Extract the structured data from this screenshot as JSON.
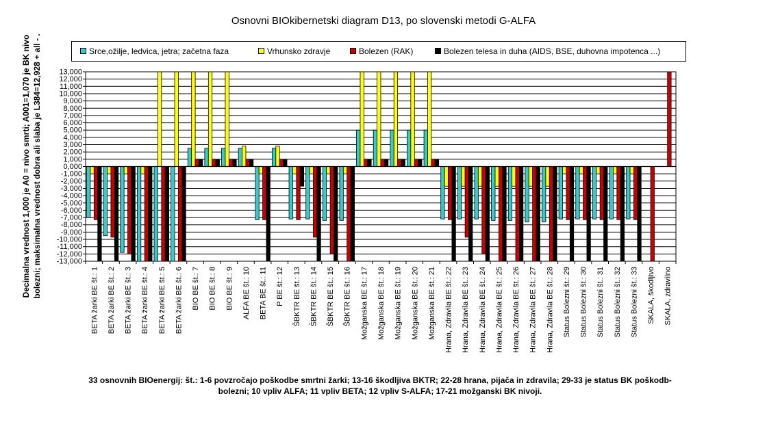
{
  "chart_data": {
    "type": "bar",
    "title": "Osnovni BIOkibernetski diagram D13, po slovenski metodi G-ALFA",
    "ylabel": "Decimalna vrednost 1,000 je A0 = nivo smrti; A001=1,070 je BK nivo bolezni; maksimalna vrednost dobra ali slaba je L384=12,928 + all -",
    "ylim": [
      -13,
      13
    ],
    "yticks": [
      "-13,000",
      "-12,000",
      "-11,000",
      "-10,000",
      "-9,000",
      "-8,000",
      "-7,000",
      "-6,000",
      "-5,000",
      "-4,000",
      "-3,000",
      "-2,000",
      "-1,000",
      "0,000",
      "1,000",
      "2,000",
      "3,000",
      "4,000",
      "5,000",
      "6,000",
      "7,000",
      "8,000",
      "9,000",
      "10,000",
      "11,000",
      "12,000",
      "13,000"
    ],
    "grid": true,
    "legend_position": "top",
    "categories": [
      "BETA žarki BE št.: 1",
      "BETA žarki BE št.: 2",
      "BETA žarki BE št.: 3",
      "BETA žarki BE št.: 4",
      "BETA žarki BE št.: 5",
      "BETA žarki BE št.: 6",
      "BIO  BE št.: 7",
      "BIO  BE št.: 8",
      "BIO  BE št.: 9",
      "ALFA  BE št.: 10",
      "BETA BE št.: 11",
      "P  BE št.: 12",
      "ŠBKTR BE št.: 13",
      "ŠBKTR BE št.: 14",
      "ŠBKTR BE št.: 15",
      "ŠBKTR BE št.: 16",
      "Možganska  BE št.: 17",
      "Možganska  BE št.: 18",
      "Možganska  BE št.: 19",
      "Možganska  BE št.: 20",
      "Možganska  BE št.: 21",
      "Hrana, Zdravila BE št.: 22",
      "Hrana, Zdravila BE št.: 23",
      "Hrana, Zdravila BE št.: 24",
      "Hrana, Zdravila BE št.: 25",
      "Hrana, Zdravila BE št.: 26",
      "Hrana, Zdravila BE št.: 27",
      "Hrana, Zdravila BE št.: 28",
      "Status Bolezni št.: 29",
      "Status Bolezni št.: 30",
      "Status Bolezni št.: 31",
      "Status Bolezni št.: 32",
      "Status Bolezni št.: 33",
      "SKALA, škodljivo",
      "SKALA, zdravilno"
    ],
    "series": [
      {
        "name": "Srce,ožilje, ledvica, jetra; začetna faza",
        "color": "#33CCCC",
        "values": [
          -7,
          -9.5,
          -11.8,
          -13,
          -13,
          -13,
          2.5,
          2.5,
          2.5,
          2.5,
          -7.3,
          2.5,
          -7.2,
          -7.2,
          -7.4,
          -7.4,
          5,
          5,
          5,
          5,
          5,
          -7.2,
          -7.2,
          -7.2,
          -7.4,
          -7.4,
          -7.6,
          -7.6,
          -7.2,
          -7.2,
          -7.2,
          -7.2,
          -7.2,
          0,
          0
        ]
      },
      {
        "name": "Vrhunsko zdravje",
        "color": "#FFFF00",
        "values": [
          -1,
          -1,
          -1,
          -1,
          13,
          13,
          13,
          13,
          13,
          2.8,
          -1,
          2.8,
          -1,
          -1,
          -1,
          -1,
          13,
          13,
          13,
          13,
          13,
          -2.7,
          -2.7,
          -2.7,
          -2.7,
          -2.7,
          -2.7,
          -2.7,
          -1,
          -1,
          -1,
          -1,
          -1,
          0,
          0
        ]
      },
      {
        "name": "Bolezen (RAK)",
        "color": "#CC0000",
        "values": [
          -7.3,
          -9.7,
          -12,
          -13,
          -13,
          -13,
          1,
          1,
          1,
          1,
          -7.3,
          1,
          -7.3,
          -9.7,
          -12,
          -13,
          1,
          1,
          1,
          1,
          1,
          -7.3,
          -9.7,
          -12,
          -13,
          -13,
          -13,
          -13,
          -7.3,
          -7.3,
          -7.3,
          -7.3,
          -7.3,
          -13,
          13
        ]
      },
      {
        "name": "Bolezen telesa in duha (AIDS, BSE, duhovna impotenca ...)",
        "color": "#000000",
        "values": [
          -13,
          -13,
          -13,
          -13,
          -13,
          -13,
          1,
          1,
          1,
          1,
          -13,
          1,
          -2.7,
          -13,
          -13,
          -13,
          1,
          1,
          1,
          1,
          1,
          -13,
          -13,
          -13,
          -13,
          -13,
          -13,
          -13,
          -13,
          -13,
          -13,
          -13,
          -13,
          0,
          0
        ]
      }
    ]
  },
  "caption": "33 osnovnih BIOenergij: št.: 1-6 povzročajo poškodbe smrtni žarki; 13-16 škodljiva BKTR; 22-28 hrana, pijača in zdravila; 29-33 je status BK poškodb-bolezni; 10 vpliv ALFA; 11 vpliv BETA; 12 vpliv S-ALFA; 17-21 možganski BK nivoji.",
  "ylabel_extra": "."
}
